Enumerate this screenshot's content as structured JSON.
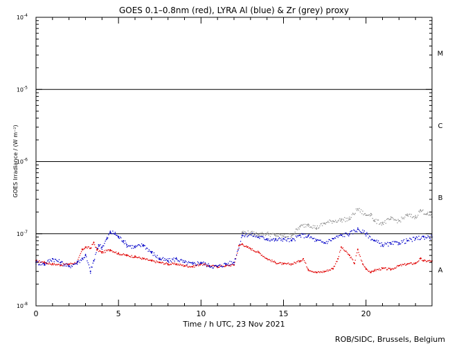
{
  "chart_data": {
    "type": "scatter",
    "title": "GOES 0.1–0.8nm (red), LYRA Al (blue) & Zr (grey) proxy",
    "xlabel": "Time / h UTC, 23 Nov 2021",
    "ylabel": "GOES Irradiance / (W m⁻²)",
    "credit": "ROB/SIDC, Brussels, Belgium",
    "xlim": [
      0,
      24
    ],
    "ylim": [
      1e-08,
      0.0001
    ],
    "yscale": "log",
    "x_ticks": [
      0,
      5,
      10,
      15,
      20
    ],
    "x_tick_labels": [
      "0",
      "5",
      "10",
      "15",
      "20"
    ],
    "y_tick_labels": [
      {
        "value": 0.0001,
        "base": "10",
        "exp": "-4"
      },
      {
        "value": 1e-05,
        "base": "10",
        "exp": "-5"
      },
      {
        "value": 1e-06,
        "base": "10",
        "exp": "-6"
      },
      {
        "value": 1e-07,
        "base": "10",
        "exp": "-7"
      },
      {
        "value": 1e-08,
        "base": "10",
        "exp": "-8"
      }
    ],
    "flare_class_lines": [
      1e-05,
      1e-06,
      1e-07
    ],
    "flare_classes": [
      {
        "label": "M",
        "value": 3.2e-05
      },
      {
        "label": "C",
        "value": 3.2e-06
      },
      {
        "label": "B",
        "value": 3.2e-07
      },
      {
        "label": "A",
        "value": 3.2e-08
      }
    ],
    "colors": {
      "goes": "#e00000",
      "lyra_al": "#0000c8",
      "lyra_zr": "#909090",
      "axis": "#000000"
    },
    "series": [
      {
        "key": "goes",
        "x": [
          0,
          0.5,
          1,
          1.5,
          2,
          2.5,
          2.8,
          3,
          3.3,
          3.5,
          3.7,
          4,
          4.5,
          5,
          5.5,
          6,
          6.5,
          7,
          7.5,
          8,
          8.5,
          9,
          9.5,
          10,
          10.5,
          11,
          11.5,
          12,
          12.3,
          12.5,
          12.8,
          13,
          13.5,
          14,
          14.5,
          15,
          15.5,
          16,
          16.2,
          16.5,
          17,
          17.5,
          18,
          18.3,
          18.5,
          19,
          19.3,
          19.5,
          19.8,
          20,
          20.3,
          20.5,
          21,
          21.5,
          22,
          22.5,
          23,
          23.3,
          23.5,
          24
        ],
        "y": [
          4.2e-08,
          4e-08,
          3.8e-08,
          3.7e-08,
          3.8e-08,
          4e-08,
          6e-08,
          6.5e-08,
          6.3e-08,
          7.5e-08,
          6e-08,
          5.5e-08,
          6e-08,
          5.3e-08,
          5e-08,
          4.8e-08,
          4.5e-08,
          4.2e-08,
          4e-08,
          3.8e-08,
          3.8e-08,
          3.6e-08,
          3.5e-08,
          3.8e-08,
          3.6e-08,
          3.5e-08,
          3.6e-08,
          3.7e-08,
          6.8e-08,
          7.2e-08,
          6.5e-08,
          6.2e-08,
          5.5e-08,
          4.5e-08,
          4e-08,
          3.8e-08,
          3.8e-08,
          4.2e-08,
          4.5e-08,
          3.2e-08,
          2.9e-08,
          3e-08,
          3.3e-08,
          4.5e-08,
          6.5e-08,
          5e-08,
          3.9e-08,
          6e-08,
          3.8e-08,
          3.3e-08,
          2.9e-08,
          3.1e-08,
          3.3e-08,
          3.2e-08,
          3.6e-08,
          3.8e-08,
          3.9e-08,
          4.5e-08,
          4.2e-08,
          4.2e-08
        ]
      },
      {
        "key": "lyra_al",
        "x": [
          0,
          0.5,
          1,
          1.5,
          2,
          2.5,
          2.8,
          3,
          3.3,
          3.5,
          3.8,
          4,
          4.3,
          4.5,
          4.8,
          5,
          5.3,
          5.5,
          6,
          6.5,
          7,
          7.5,
          8,
          8.5,
          9,
          9.5,
          10,
          10.5,
          11,
          11.5,
          12,
          12.5,
          13,
          13.5,
          14,
          14.5,
          15,
          15.5,
          16,
          16.5,
          17,
          17.5,
          18,
          18.5,
          19,
          19.5,
          20,
          20.5,
          21,
          21.5,
          22,
          22.5,
          23,
          23.5,
          24
        ],
        "y": [
          4e-08,
          3.8e-08,
          4.5e-08,
          4e-08,
          3.5e-08,
          4e-08,
          4.5e-08,
          5e-08,
          3e-08,
          4.2e-08,
          7e-08,
          6.5e-08,
          8.5e-08,
          1.05e-07,
          1e-07,
          9e-08,
          8e-08,
          7e-08,
          6.5e-08,
          7e-08,
          5.5e-08,
          4.5e-08,
          4.2e-08,
          4.5e-08,
          4e-08,
          3.8e-08,
          4e-08,
          3.6e-08,
          3.5e-08,
          3.8e-08,
          4e-08,
          9.5e-08,
          9.8e-08,
          9e-08,
          8.5e-08,
          8.2e-08,
          8.5e-08,
          8e-08,
          9.5e-08,
          9.3e-08,
          8e-08,
          7.5e-08,
          8.5e-08,
          9.5e-08,
          1e-07,
          1.15e-07,
          1e-07,
          8e-08,
          7e-08,
          7.2e-08,
          7.5e-08,
          8e-08,
          8.5e-08,
          9e-08,
          9e-08
        ]
      },
      {
        "key": "lyra_zr",
        "x": [
          12.5,
          13,
          13.5,
          14,
          14.5,
          15,
          15.5,
          16,
          16.5,
          17,
          17.5,
          18,
          18.5,
          19,
          19.5,
          20,
          20.3,
          20.5,
          21,
          21.5,
          22,
          22.5,
          23,
          23.3,
          23.7,
          24
        ],
        "y": [
          1.05e-07,
          1.02e-07,
          9.8e-08,
          1e-07,
          9.5e-08,
          9.2e-08,
          9.5e-08,
          1.25e-07,
          1.35e-07,
          1.2e-07,
          1.4e-07,
          1.5e-07,
          1.55e-07,
          1.6e-07,
          2.2e-07,
          1.8e-07,
          1.9e-07,
          1.5e-07,
          1.4e-07,
          1.6e-07,
          1.5e-07,
          1.8e-07,
          1.7e-07,
          2.1e-07,
          1.9e-07,
          1.7e-07
        ]
      }
    ]
  }
}
